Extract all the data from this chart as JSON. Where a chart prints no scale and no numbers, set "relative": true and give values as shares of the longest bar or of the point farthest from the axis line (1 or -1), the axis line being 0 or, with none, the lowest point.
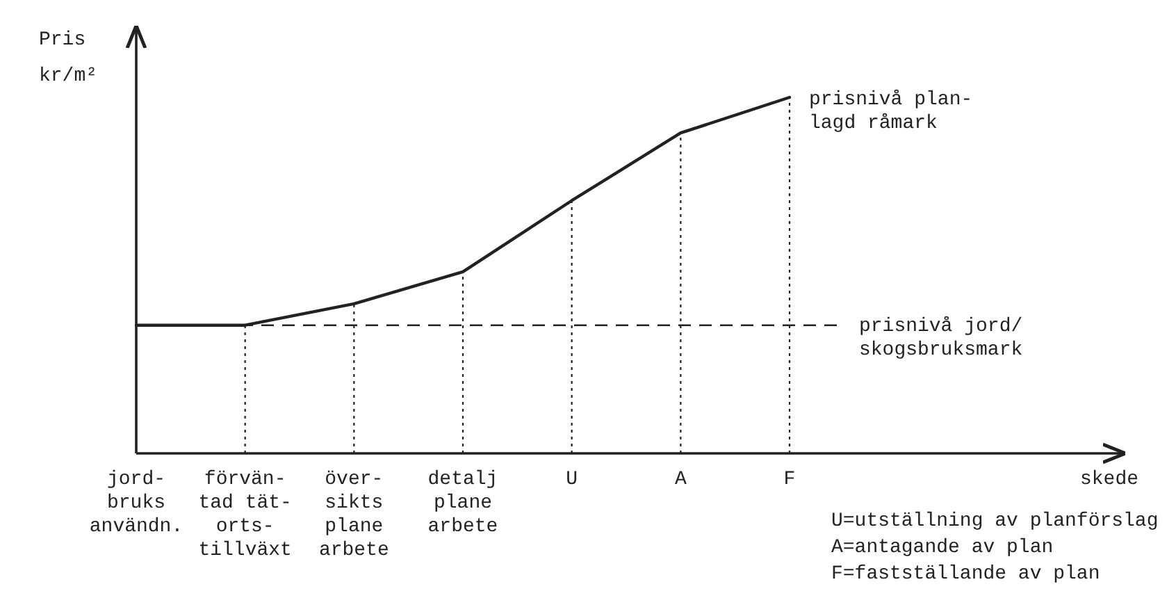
{
  "chart_data": {
    "type": "line",
    "relative": true,
    "ylabel": "Pris\nkr/m²",
    "categories": [
      "jord-\nbruks\nanvändn.",
      "förvän-\ntad tät-\norts-\ntillväxt",
      "över-\nsikts\nplane\narbete",
      "detalj\nplane\narbete",
      "U",
      "A",
      "F"
    ],
    "series": [
      {
        "name": "prisnivå plan-\nlagd råmark",
        "color": "#222222",
        "values": [
          0.36,
          0.36,
          0.42,
          0.51,
          0.71,
          0.9,
          1.0
        ]
      }
    ],
    "ref_lines": [
      {
        "axis": "y",
        "value": 0.36,
        "label": "prisnivå jord/\nskogsbruksmark",
        "line_style": "dashed",
        "color": "#222222"
      },
      {
        "axis": "x",
        "value": "förvän-\ntad tät-\norts-\ntillväxt",
        "label": null,
        "line_style": "dotted",
        "color": "#222222"
      },
      {
        "axis": "x",
        "value": "över-\nsikts\nplane\narbete",
        "label": null,
        "line_style": "dotted",
        "color": "#222222"
      },
      {
        "axis": "x",
        "value": "detalj\nplane\narbete",
        "label": null,
        "line_style": "dotted",
        "color": "#222222"
      },
      {
        "axis": "x",
        "value": "U",
        "label": null,
        "line_style": "dotted",
        "color": "#222222"
      },
      {
        "axis": "x",
        "value": "A",
        "label": null,
        "line_style": "dotted",
        "color": "#222222"
      },
      {
        "axis": "x",
        "value": "F",
        "label": null,
        "line_style": "dotted",
        "color": "#222222"
      }
    ],
    "annotations": [
      "skede",
      "U=utställning av planförslag",
      "A=antagande av plan",
      "F=fastställande av plan"
    ],
    "grid": false,
    "marker": "none",
    "line_style": "solid"
  }
}
